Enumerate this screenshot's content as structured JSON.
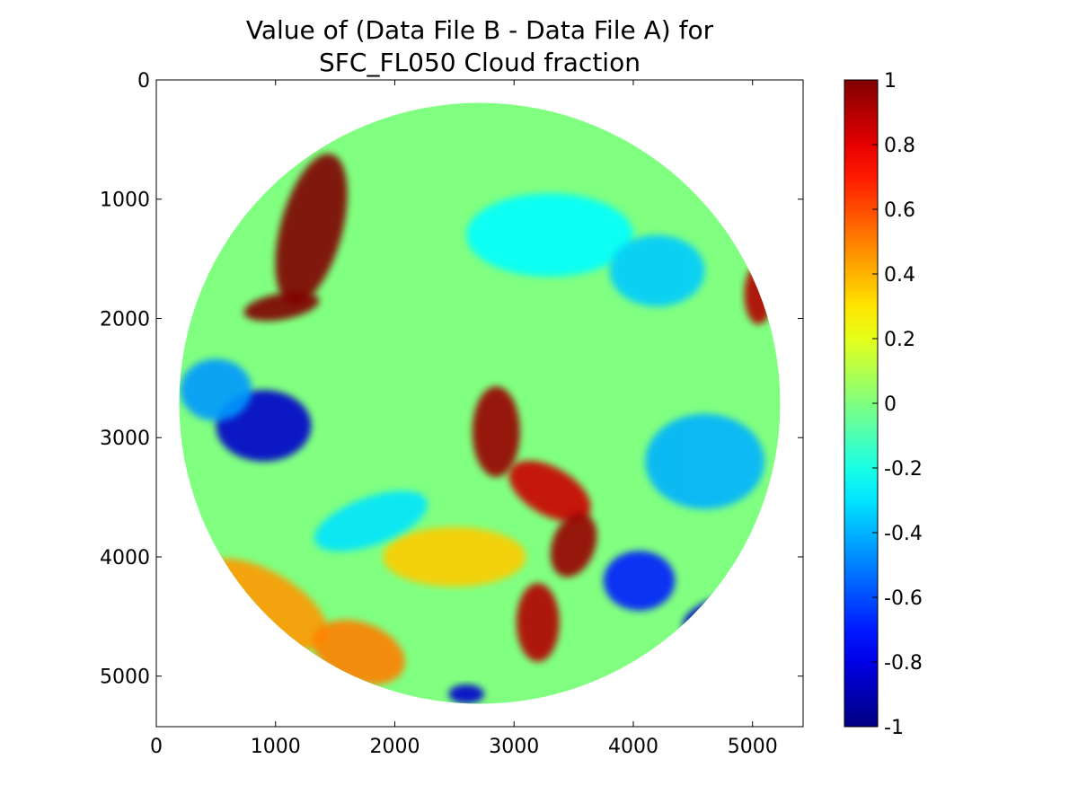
{
  "chart_data": {
    "type": "heatmap",
    "title_lines": [
      "Value of (Data File B - Data File A) for",
      "SFC_FL050 Cloud fraction"
    ],
    "xlabel": "",
    "ylabel": "",
    "xlim": [
      0,
      5424
    ],
    "ylim": [
      5424,
      0
    ],
    "x_ticks": [
      0,
      1000,
      2000,
      3000,
      4000,
      5000
    ],
    "y_ticks": [
      0,
      1000,
      2000,
      3000,
      4000,
      5000
    ],
    "colorbar": {
      "range": [
        -1,
        1
      ],
      "ticks": [
        1,
        0.8,
        0.6,
        0.4,
        0.2,
        0,
        -0.2,
        -0.4,
        -0.6,
        -0.8,
        -1
      ],
      "tick_labels": [
        "1",
        "0.8",
        "0.6",
        "0.4",
        "0.2",
        "0",
        "-0.2",
        "-0.4",
        "-0.6",
        "-0.8",
        "-1"
      ],
      "colormap": "jet"
    },
    "disk": {
      "center": [
        2712,
        2712
      ],
      "radius": 2520,
      "background_value": 0
    },
    "features": [
      {
        "center": [
          1300,
          1250
        ],
        "radius": [
          260,
          650
        ],
        "value": 1.0,
        "rotation": 15
      },
      {
        "center": [
          1050,
          1900
        ],
        "radius": [
          320,
          110
        ],
        "value": 1.0,
        "rotation": -10
      },
      {
        "center": [
          2850,
          2950
        ],
        "radius": [
          200,
          380
        ],
        "value": 0.95,
        "rotation": 0
      },
      {
        "center": [
          3300,
          3450
        ],
        "radius": [
          380,
          200
        ],
        "value": 0.85,
        "rotation": 30
      },
      {
        "center": [
          3500,
          3900
        ],
        "radius": [
          180,
          280
        ],
        "value": 0.95,
        "rotation": 20
      },
      {
        "center": [
          3200,
          4550
        ],
        "radius": [
          180,
          330
        ],
        "value": 0.9,
        "rotation": 0
      },
      {
        "center": [
          900,
          2900
        ],
        "radius": [
          400,
          300
        ],
        "value": -0.85,
        "rotation": 0
      },
      {
        "center": [
          500,
          2600
        ],
        "radius": [
          300,
          260
        ],
        "value": -0.45,
        "rotation": 0
      },
      {
        "center": [
          4600,
          3200
        ],
        "radius": [
          500,
          400
        ],
        "value": -0.4,
        "rotation": 0
      },
      {
        "center": [
          4700,
          4500
        ],
        "radius": [
          300,
          150
        ],
        "value": -0.85,
        "rotation": -20
      },
      {
        "center": [
          900,
          4400
        ],
        "radius": [
          600,
          280
        ],
        "value": 0.45,
        "rotation": 30
      },
      {
        "center": [
          1700,
          4800
        ],
        "radius": [
          400,
          250
        ],
        "value": 0.5,
        "rotation": 20
      },
      {
        "center": [
          3300,
          1300
        ],
        "radius": [
          700,
          350
        ],
        "value": -0.25,
        "rotation": 0
      },
      {
        "center": [
          4200,
          1600
        ],
        "radius": [
          400,
          300
        ],
        "value": -0.35,
        "rotation": 0
      },
      {
        "center": [
          5050,
          1800
        ],
        "radius": [
          120,
          250
        ],
        "value": 0.9,
        "rotation": 0
      },
      {
        "center": [
          2500,
          4000
        ],
        "radius": [
          600,
          250
        ],
        "value": 0.35,
        "rotation": 0
      },
      {
        "center": [
          4050,
          4200
        ],
        "radius": [
          300,
          250
        ],
        "value": -0.7,
        "rotation": 0
      },
      {
        "center": [
          2600,
          5150
        ],
        "radius": [
          150,
          80
        ],
        "value": -0.85,
        "rotation": 0
      },
      {
        "center": [
          1800,
          3700
        ],
        "radius": [
          500,
          200
        ],
        "value": -0.3,
        "rotation": -20
      }
    ]
  }
}
